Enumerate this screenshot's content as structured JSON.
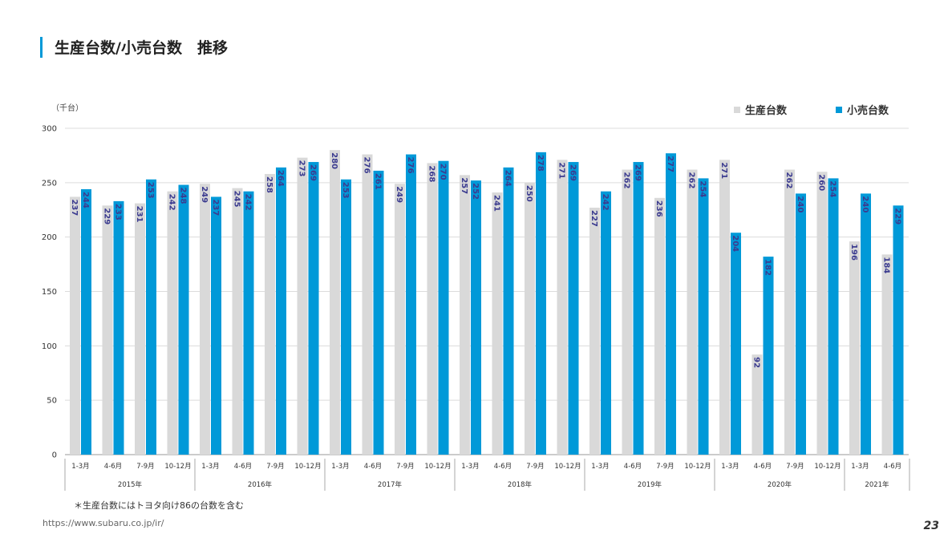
{
  "page": {
    "title": "生産台数/小売台数　推移",
    "footnote": "＊生産台数にはトヨタ向け86の台数を含む",
    "url": "https://www.subaru.co.jp/ir/",
    "page_number": "23"
  },
  "colors": {
    "production": "#d9d9d9",
    "retail": "#0099d8",
    "accent": "#0099d8",
    "value_label": "#3b3b8f"
  },
  "chart_data": {
    "type": "bar",
    "unit_label": "（千台）",
    "ylim": [
      0,
      300
    ],
    "yticks": [
      0,
      50,
      100,
      150,
      200,
      250,
      300
    ],
    "grid": true,
    "legend_position": "top-right",
    "series": [
      {
        "name": "生産台数",
        "values": [
          237,
          229,
          231,
          242,
          249,
          245,
          258,
          273,
          280,
          276,
          249,
          268,
          257,
          241,
          250,
          271,
          227,
          262,
          236,
          262,
          271,
          92,
          262,
          260,
          196,
          184
        ]
      },
      {
        "name": "小売台数",
        "values": [
          244,
          233,
          253,
          248,
          237,
          242,
          264,
          269,
          253,
          261,
          276,
          270,
          252,
          264,
          278,
          269,
          242,
          269,
          277,
          254,
          204,
          182,
          240,
          254,
          240,
          229
        ]
      }
    ],
    "categories": [
      "1-3月",
      "4-6月",
      "7-9月",
      "10-12月",
      "1-3月",
      "4-6月",
      "7-9月",
      "10-12月",
      "1-3月",
      "4-6月",
      "7-9月",
      "10-12月",
      "1-3月",
      "4-6月",
      "7-9月",
      "10-12月",
      "1-3月",
      "4-6月",
      "7-9月",
      "10-12月",
      "1-3月",
      "4-6月",
      "7-9月",
      "10-12月",
      "1-3月",
      "4-6月"
    ],
    "years": [
      {
        "label": "2015年",
        "count": 4
      },
      {
        "label": "2016年",
        "count": 4
      },
      {
        "label": "2017年",
        "count": 4
      },
      {
        "label": "2018年",
        "count": 4
      },
      {
        "label": "2019年",
        "count": 4
      },
      {
        "label": "2020年",
        "count": 4
      },
      {
        "label": "2021年",
        "count": 2
      }
    ]
  }
}
